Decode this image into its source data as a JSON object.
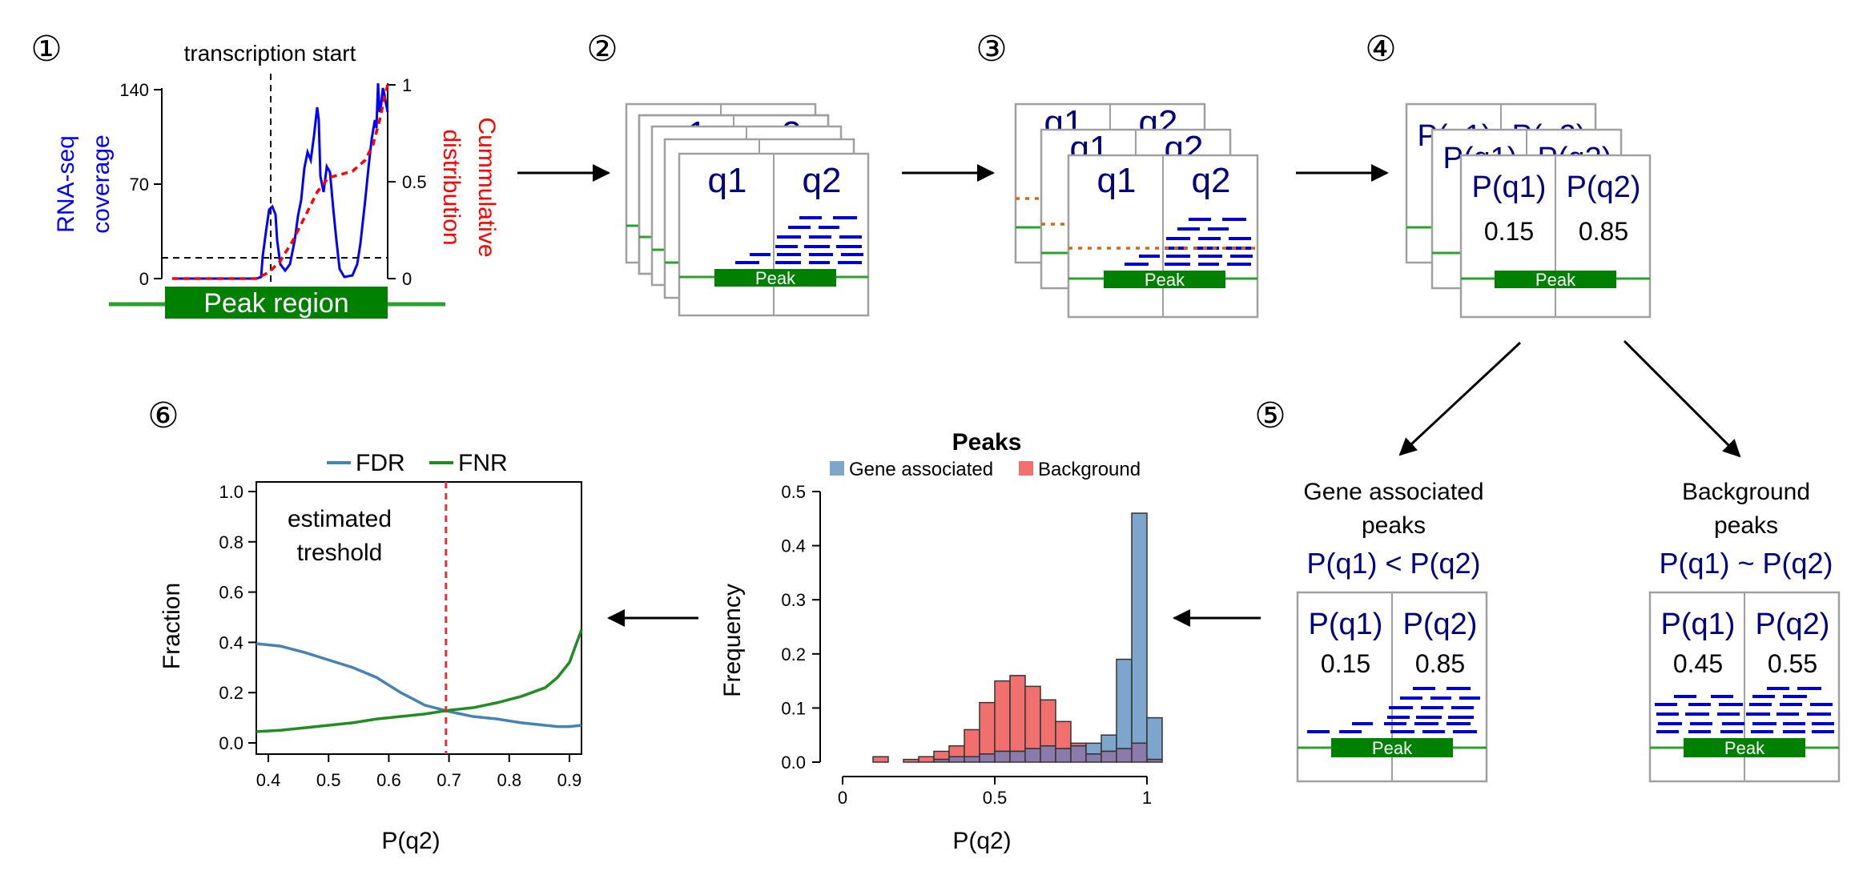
{
  "steps": [
    "①",
    "②",
    "③",
    "④",
    "⑤",
    "⑥"
  ],
  "panel1": {
    "title": "transcription start",
    "left_ylabel_line1": "RNA-seq",
    "left_ylabel_line2": "coverage",
    "right_ylabel_line1": "Cummulative",
    "right_ylabel_line2": "distribution",
    "left_ticks": [
      "140",
      "70",
      "0"
    ],
    "right_ticks": [
      "1",
      "0.5",
      "0"
    ],
    "peak_label": "Peak region",
    "colors": {
      "coverage": "#0000ff",
      "cumulative": "#ff0000",
      "genome": "#2ca02c",
      "peak": "#008000"
    }
  },
  "cards": {
    "q1": "q1",
    "q2": "q2",
    "pq1": "P(q1)",
    "pq2": "P(q2)",
    "peak": "Peak",
    "v1": "0.15",
    "v2": "0.85"
  },
  "panel5": {
    "gene": {
      "title_line1": "Gene associated",
      "title_line2": "peaks",
      "relation": "P(q1) < P(q2)",
      "v1": "0.15",
      "v2": "0.85"
    },
    "background": {
      "title_line1": "Background",
      "title_line2": "peaks",
      "relation": "P(q1) ~ P(q2)",
      "v1": "0.45",
      "v2": "0.55"
    }
  },
  "histogram": {
    "title": "Peaks",
    "legend": [
      "Gene associated",
      "Background"
    ],
    "ylabel": "Frequency",
    "xlabel": "P(q2)",
    "yticks": [
      "0.0",
      "0.1",
      "0.2",
      "0.3",
      "0.4",
      "0.5"
    ],
    "xticks": [
      "0",
      "0.5",
      "1"
    ],
    "colors": {
      "gene": "#7ea6cc",
      "background": "#f07070",
      "overlap": "#8a7bab"
    }
  },
  "chart_data": [
    {
      "type": "bar",
      "title": "Peaks",
      "xlabel": "P(q2)",
      "ylabel": "Frequency",
      "xlim": [
        0,
        1
      ],
      "ylim": [
        0,
        0.5
      ],
      "bin_starts": [
        0.0,
        0.05,
        0.1,
        0.15,
        0.2,
        0.25,
        0.3,
        0.35,
        0.4,
        0.45,
        0.5,
        0.55,
        0.6,
        0.65,
        0.7,
        0.75,
        0.8,
        0.85,
        0.9,
        0.95,
        1.0
      ],
      "bin_width": 0.05,
      "series": [
        {
          "name": "Gene associated",
          "values": [
            0,
            0,
            0,
            0,
            0,
            0,
            0.005,
            0.01,
            0.01,
            0.015,
            0.02,
            0.02,
            0.025,
            0.03,
            0.025,
            0.03,
            0.035,
            0.05,
            0.19,
            0.46,
            0.082
          ]
        },
        {
          "name": "Background",
          "values": [
            0,
            0,
            0.01,
            0,
            0.005,
            0.01,
            0.02,
            0.03,
            0.06,
            0.11,
            0.15,
            0.16,
            0.14,
            0.115,
            0.075,
            0.035,
            0.015,
            0.02,
            0.025,
            0.035,
            0.005
          ]
        }
      ]
    },
    {
      "type": "line",
      "legend": [
        "FDR",
        "FNR"
      ],
      "xlabel": "P(q2)",
      "ylabel": "Fraction",
      "xlim": [
        0.38,
        0.92
      ],
      "ylim": [
        0,
        1
      ],
      "xticks": [
        "0.4",
        "0.5",
        "0.6",
        "0.7",
        "0.8",
        "0.9"
      ],
      "yticks": [
        "0.0",
        "0.2",
        "0.4",
        "0.6",
        "0.8",
        "1.0"
      ],
      "threshold": 0.695,
      "threshold_label_line1": "estimated",
      "threshold_label_line2": "treshold",
      "colors": {
        "FDR": "#4682b4",
        "FNR": "#228b22",
        "threshold": "#e8302a"
      },
      "x": [
        0.38,
        0.42,
        0.46,
        0.5,
        0.54,
        0.58,
        0.62,
        0.66,
        0.7,
        0.74,
        0.78,
        0.82,
        0.86,
        0.88,
        0.9,
        0.92
      ],
      "series": [
        {
          "name": "FDR",
          "values": [
            0.395,
            0.385,
            0.36,
            0.33,
            0.3,
            0.26,
            0.2,
            0.15,
            0.125,
            0.105,
            0.095,
            0.08,
            0.07,
            0.065,
            0.065,
            0.07
          ]
        },
        {
          "name": "FNR",
          "values": [
            0.045,
            0.05,
            0.06,
            0.07,
            0.08,
            0.095,
            0.105,
            0.115,
            0.13,
            0.14,
            0.16,
            0.185,
            0.22,
            0.26,
            0.32,
            0.45
          ]
        }
      ]
    }
  ]
}
